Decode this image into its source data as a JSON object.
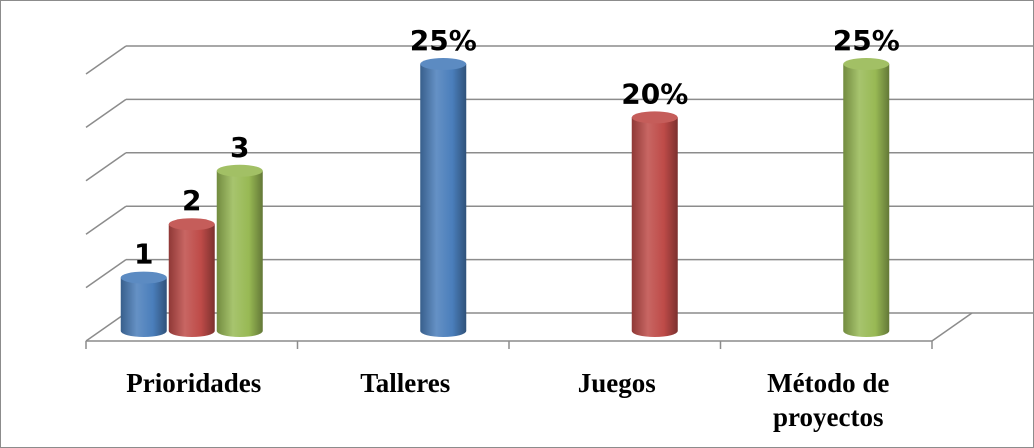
{
  "chart_data": {
    "type": "bar",
    "style": "3d-cylinder",
    "categories": [
      "Prioridades",
      "Talleres",
      "Juegos",
      "Método de proyectos"
    ],
    "category_label_lines": [
      [
        "Prioridades"
      ],
      [
        "Talleres"
      ],
      [
        "Juegos"
      ],
      [
        "Método de",
        "proyectos"
      ]
    ],
    "grid": true,
    "legend": "none",
    "bars": [
      {
        "category": "Prioridades",
        "value": 5,
        "label": "1",
        "color": "#4a7ebb"
      },
      {
        "category": "Prioridades",
        "value": 10,
        "label": "2",
        "color": "#be4b48"
      },
      {
        "category": "Prioridades",
        "value": 15,
        "label": "3",
        "color": "#98b954"
      },
      {
        "category": "Talleres",
        "value": 25,
        "label": "25%",
        "color": "#4a7ebb"
      },
      {
        "category": "Juegos",
        "value": 20,
        "label": "20%",
        "color": "#be4b48"
      },
      {
        "category": "Método de proyectos",
        "value": 25,
        "label": "25%",
        "color": "#98b954"
      }
    ],
    "ylim": [
      0,
      25
    ],
    "gridline_count": 5,
    "colors": {
      "blue": "#4a7ebb",
      "red": "#be4b48",
      "green": "#98b954",
      "grid": "#8c8c8c"
    }
  }
}
